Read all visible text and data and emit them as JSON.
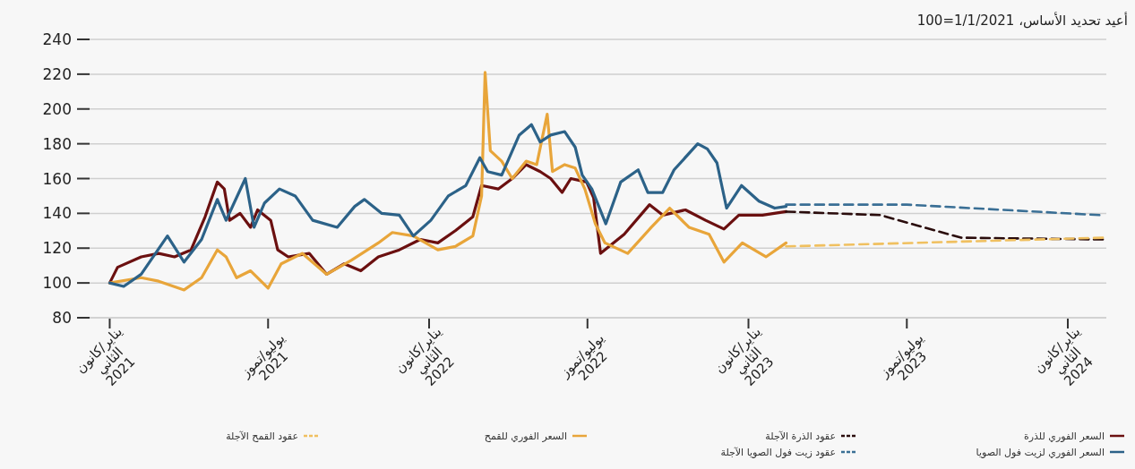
{
  "chart_data": {
    "type": "line",
    "subtitle": "أعيد تحديد الأساس، 1/1/2021=100",
    "xlim": [
      "2020-12-09",
      "2024-02-14"
    ],
    "xticks": [
      {
        "value": "2021-01-01",
        "label": "يناير/كانون الثاني 2021"
      },
      {
        "value": "2021-07-01",
        "label": "يوليو/تموز 2021"
      },
      {
        "value": "2022-01-01",
        "label": "يناير/كانون الثاني 2022"
      },
      {
        "value": "2022-07-01",
        "label": "يوليو/تموز 2022"
      },
      {
        "value": "2023-01-01",
        "label": "يناير/كانون الثاني 2023"
      },
      {
        "value": "2023-07-01",
        "label": "يوليو/تموز 2023"
      },
      {
        "value": "2024-01-01",
        "label": "يناير/كانون الثاني 2024"
      }
    ],
    "ylim": [
      80,
      240
    ],
    "yticks": [
      80,
      100,
      120,
      140,
      160,
      180,
      200,
      220,
      240
    ],
    "grid": "y",
    "legend": "bottom",
    "marker": "none",
    "series": [
      {
        "name": "السعر الفوري للذرة",
        "color": "#6b1010",
        "line_style": "solid",
        "x": [
          "2021-01-01",
          "2021-01-10",
          "2021-02-06",
          "2021-02-26",
          "2021-03-16",
          "2021-04-04",
          "2021-04-20",
          "2021-05-04",
          "2021-05-12",
          "2021-05-18",
          "2021-05-30",
          "2021-06-11",
          "2021-06-19",
          "2021-07-04",
          "2021-07-12",
          "2021-07-24",
          "2021-08-17",
          "2021-09-06",
          "2021-09-26",
          "2021-10-15",
          "2021-11-04",
          "2021-11-28",
          "2021-12-22",
          "2022-01-11",
          "2022-01-31",
          "2022-02-20",
          "2022-03-02",
          "2022-03-21",
          "2022-04-06",
          "2022-04-22",
          "2022-05-08",
          "2022-05-20",
          "2022-06-02",
          "2022-06-12",
          "2022-06-30",
          "2022-07-08",
          "2022-07-16",
          "2022-08-12",
          "2022-09-10",
          "2022-09-25",
          "2022-10-21",
          "2022-11-13",
          "2022-12-04",
          "2022-12-21",
          "2023-01-17",
          "2023-02-13"
        ],
        "values": [
          100,
          109,
          115,
          117,
          115,
          119,
          138,
          158,
          154,
          136,
          140,
          132,
          142,
          136,
          119,
          115,
          117,
          105,
          111,
          107,
          115,
          119,
          125,
          123,
          130,
          138,
          156,
          154,
          160,
          168,
          164,
          160,
          152,
          160,
          158,
          149,
          117,
          128,
          145,
          139,
          142,
          136,
          131,
          139,
          139,
          141
        ]
      },
      {
        "name": "عقود الذرة الآجلة",
        "color": "#2a0c0c",
        "line_style": "dashed",
        "x": [
          "2023-02-13",
          "2023-06-01",
          "2023-07-13",
          "2023-09-01",
          "2024-02-10"
        ],
        "values": [
          141,
          139,
          133,
          126,
          125
        ]
      },
      {
        "name": "السعر الفوري للقمح",
        "color": "#e8a53a",
        "line_style": "solid",
        "x": [
          "2021-01-01",
          "2021-02-06",
          "2021-02-26",
          "2021-03-27",
          "2021-04-16",
          "2021-05-04",
          "2021-05-14",
          "2021-05-26",
          "2021-06-11",
          "2021-07-01",
          "2021-07-16",
          "2021-08-09",
          "2021-09-06",
          "2021-10-04",
          "2021-11-04",
          "2021-11-20",
          "2021-12-14",
          "2022-01-11",
          "2022-01-31",
          "2022-02-20",
          "2022-03-02",
          "2022-03-06",
          "2022-03-12",
          "2022-03-25",
          "2022-04-06",
          "2022-04-22",
          "2022-05-04",
          "2022-05-16",
          "2022-05-22",
          "2022-06-05",
          "2022-06-17",
          "2022-06-28",
          "2022-07-10",
          "2022-07-21",
          "2022-08-16",
          "2022-09-12",
          "2022-10-03",
          "2022-10-25",
          "2022-11-17",
          "2022-12-04",
          "2022-12-25",
          "2023-01-21",
          "2023-02-13"
        ],
        "values": [
          100,
          103,
          101,
          96,
          103,
          119,
          115,
          103,
          107,
          97,
          111,
          117,
          105,
          113,
          123,
          129,
          127,
          119,
          121,
          127,
          150,
          221,
          176,
          170,
          160,
          170,
          168,
          197,
          164,
          168,
          166,
          154,
          134,
          123,
          117,
          132,
          143,
          132,
          128,
          112,
          123,
          115,
          123
        ]
      },
      {
        "name": "عقود القمح الآجلة",
        "color": "#f0c060",
        "line_style": "dashed",
        "x": [
          "2023-02-13",
          "2024-02-10"
        ],
        "values": [
          121,
          126
        ]
      },
      {
        "name": "السعر الفوري لزيت فول الصويا",
        "color": "#2c6288",
        "line_style": "solid",
        "x": [
          "2021-01-01",
          "2021-01-17",
          "2021-02-06",
          "2021-03-08",
          "2021-03-27",
          "2021-04-16",
          "2021-05-04",
          "2021-05-14",
          "2021-06-05",
          "2021-06-15",
          "2021-06-27",
          "2021-07-14",
          "2021-08-01",
          "2021-08-21",
          "2021-09-18",
          "2021-10-08",
          "2021-10-19",
          "2021-11-08",
          "2021-11-28",
          "2021-12-14",
          "2022-01-03",
          "2022-01-23",
          "2022-02-12",
          "2022-02-28",
          "2022-03-09",
          "2022-03-25",
          "2022-04-14",
          "2022-04-28",
          "2022-05-08",
          "2022-05-20",
          "2022-06-05",
          "2022-06-17",
          "2022-06-25",
          "2022-07-06",
          "2022-07-22",
          "2022-08-08",
          "2022-08-28",
          "2022-09-08",
          "2022-09-25",
          "2022-10-08",
          "2022-11-04",
          "2022-11-15",
          "2022-11-26",
          "2022-12-07",
          "2022-12-24",
          "2023-01-13",
          "2023-01-31",
          "2023-02-13"
        ],
        "values": [
          100,
          98,
          105,
          127,
          112,
          125,
          148,
          136,
          160,
          132,
          146,
          154,
          150,
          136,
          132,
          144,
          148,
          140,
          139,
          127,
          136,
          150,
          156,
          172,
          164,
          162,
          185,
          191,
          181,
          185,
          187,
          178,
          162,
          154,
          134,
          158,
          165,
          152,
          152,
          165,
          180,
          177,
          169,
          143,
          156,
          147,
          143,
          144
        ]
      },
      {
        "name": "عقود زيت فول الصويا الآجلة",
        "color": "#3a6f95",
        "line_style": "dashed",
        "x": [
          "2023-02-13",
          "2023-07-01",
          "2024-02-06"
        ],
        "values": [
          145,
          145,
          139
        ]
      }
    ]
  }
}
